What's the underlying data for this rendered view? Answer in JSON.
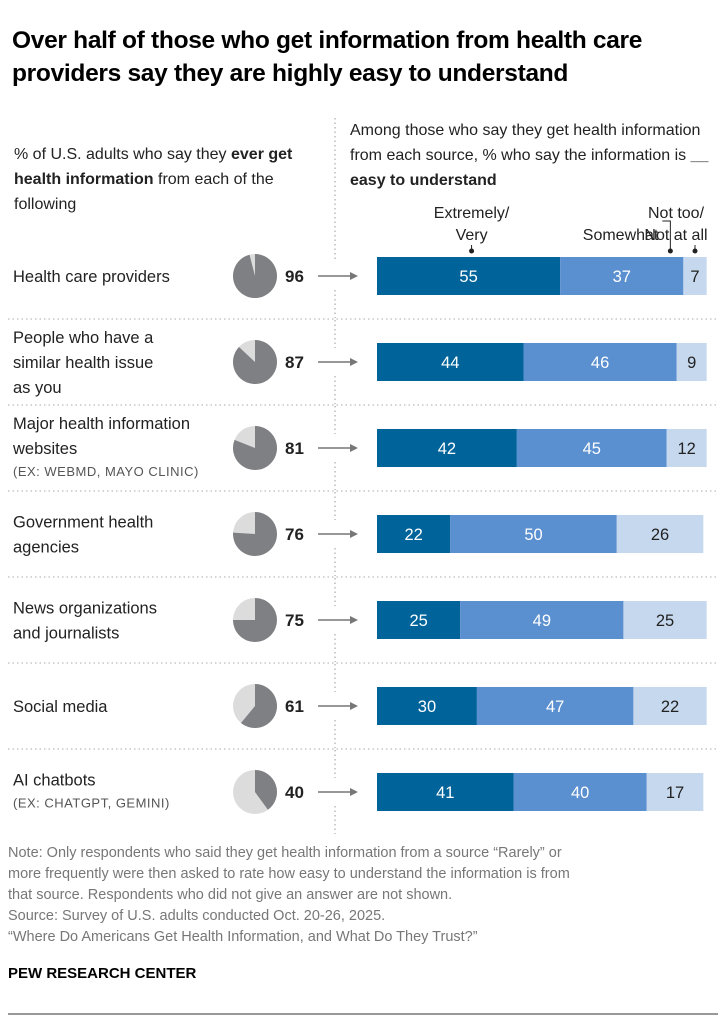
{
  "title": "Over half of those who get information from health care providers say they are highly easy to understand",
  "left_header": {
    "pre": "% of U.S. adults who say they ",
    "bold": "ever get health information",
    "post": " from each of the following"
  },
  "right_header": {
    "pre": "Among those who say they get health information from each source, % who say the information is ",
    "blank": "__",
    "bold": "easy to understand"
  },
  "note_lines": [
    "Note: Only respondents who said they get health information from a source “Rarely” or",
    "more frequently were then asked to rate how easy to understand the information is from",
    "that source. Respondents who did not give an answer are not shown.",
    "Source: Survey of U.S. adults conducted Oct. 20-26, 2025.",
    "“Where Do Americans Get Health Information, and What Do They Trust?”"
  ],
  "brand": "PEW RESEARCH CENTER",
  "colors": {
    "extremely_very": "#00649b",
    "somewhat": "#5a8fd0",
    "not_too": "#c6d8ee",
    "pie_fill": "#7f8083",
    "pie_bg": "#dcdcdc"
  },
  "chart_data": {
    "type": "bar",
    "orientation": "horizontal-stacked",
    "categories": [
      {
        "label": [
          "Health care providers"
        ],
        "sub": ""
      },
      {
        "label": [
          "People who have a",
          "similar health issue",
          "as you"
        ],
        "sub": ""
      },
      {
        "label": [
          "Major health information",
          "websites"
        ],
        "sub": "(EX: WEBMD, MAYO CLINIC)"
      },
      {
        "label": [
          "Government health",
          "agencies"
        ],
        "sub": ""
      },
      {
        "label": [
          "News organizations",
          "and journalists"
        ],
        "sub": ""
      },
      {
        "label": [
          "Social media"
        ],
        "sub": ""
      },
      {
        "label": [
          "AI chatbots"
        ],
        "sub": "(EX: CHATGPT, GEMINI)"
      }
    ],
    "ever_get_pct": [
      96,
      87,
      81,
      76,
      75,
      61,
      40
    ],
    "series": [
      {
        "name": [
          "Extremely/",
          "Very"
        ],
        "values": [
          55,
          44,
          42,
          22,
          25,
          30,
          41
        ]
      },
      {
        "name": [
          "Somewhat"
        ],
        "values": [
          37,
          46,
          45,
          50,
          49,
          47,
          40
        ]
      },
      {
        "name": [
          "Not too/",
          "Not at all"
        ],
        "values": [
          7,
          9,
          12,
          26,
          25,
          22,
          17
        ]
      }
    ],
    "xlim": [
      0,
      100
    ]
  }
}
